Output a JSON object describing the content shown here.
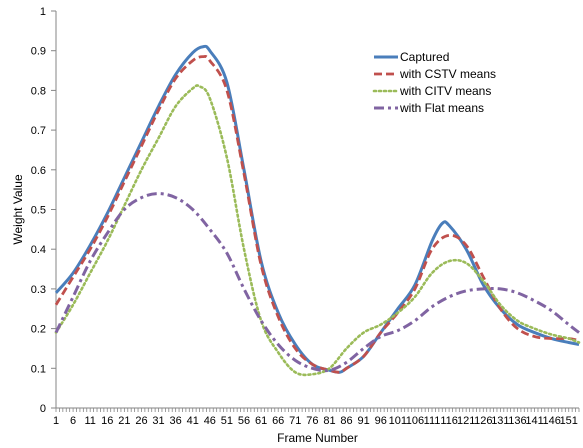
{
  "chart_data": {
    "type": "line",
    "title": "",
    "xlabel": "Frame Number",
    "ylabel": "Weight Value",
    "ylim": [
      0,
      1
    ],
    "xlim": [
      1,
      154
    ],
    "grid": false,
    "legend_position": "top-right",
    "y_ticks": [
      {
        "value": 0,
        "label": "0"
      },
      {
        "value": 0.1,
        "label": "0.1"
      },
      {
        "value": 0.2,
        "label": "0.2"
      },
      {
        "value": 0.3,
        "label": "0.3"
      },
      {
        "value": 0.4,
        "label": "0.4"
      },
      {
        "value": 0.5,
        "label": "0.5"
      },
      {
        "value": 0.6,
        "label": "0.6"
      },
      {
        "value": 0.7,
        "label": "0.7"
      },
      {
        "value": 0.8,
        "label": "0.8"
      },
      {
        "value": 0.9,
        "label": "0.9"
      },
      {
        "value": 1,
        "label": "1"
      }
    ],
    "x_ticks": [
      {
        "value": 1,
        "label": "1"
      },
      {
        "value": 6,
        "label": "6"
      },
      {
        "value": 11,
        "label": "11"
      },
      {
        "value": 16,
        "label": "16"
      },
      {
        "value": 21,
        "label": "21"
      },
      {
        "value": 26,
        "label": "26"
      },
      {
        "value": 31,
        "label": "31"
      },
      {
        "value": 36,
        "label": "36"
      },
      {
        "value": 41,
        "label": "41"
      },
      {
        "value": 46,
        "label": "46"
      },
      {
        "value": 51,
        "label": "51"
      },
      {
        "value": 56,
        "label": "56"
      },
      {
        "value": 61,
        "label": "61"
      },
      {
        "value": 66,
        "label": "66"
      },
      {
        "value": 71,
        "label": "71"
      },
      {
        "value": 76,
        "label": "76"
      },
      {
        "value": 81,
        "label": "81"
      },
      {
        "value": 86,
        "label": "86"
      },
      {
        "value": 91,
        "label": "91"
      },
      {
        "value": 96,
        "label": "96"
      },
      {
        "value": 101,
        "label": "101"
      },
      {
        "value": 106,
        "label": "106"
      },
      {
        "value": 111,
        "label": "111"
      },
      {
        "value": 116,
        "label": "116"
      },
      {
        "value": 121,
        "label": "121"
      },
      {
        "value": 126,
        "label": "126"
      },
      {
        "value": 131,
        "label": "131"
      },
      {
        "value": 136,
        "label": "136"
      },
      {
        "value": 141,
        "label": "141"
      },
      {
        "value": 146,
        "label": "146"
      },
      {
        "value": 151,
        "label": "151"
      }
    ],
    "series": [
      {
        "name": "Captured",
        "color": "#4a7ebb",
        "dash": "solid",
        "x": [
          1,
          6,
          11,
          16,
          21,
          26,
          31,
          36,
          41,
          44,
          46,
          51,
          56,
          61,
          66,
          71,
          76,
          81,
          84,
          86,
          91,
          96,
          101,
          106,
          111,
          114,
          116,
          121,
          126,
          131,
          136,
          141,
          146,
          151,
          154
        ],
        "y": [
          0.29,
          0.34,
          0.41,
          0.49,
          0.58,
          0.67,
          0.76,
          0.84,
          0.895,
          0.91,
          0.9,
          0.82,
          0.6,
          0.37,
          0.24,
          0.16,
          0.11,
          0.095,
          0.09,
          0.1,
          0.13,
          0.19,
          0.25,
          0.31,
          0.42,
          0.465,
          0.46,
          0.4,
          0.31,
          0.25,
          0.21,
          0.19,
          0.175,
          0.165,
          0.16
        ]
      },
      {
        "name": "with CSTV means",
        "color": "#c0504d",
        "dash": "dashed",
        "x": [
          1,
          6,
          11,
          16,
          21,
          26,
          31,
          36,
          41,
          44,
          46,
          51,
          56,
          61,
          66,
          71,
          76,
          81,
          84,
          86,
          91,
          96,
          101,
          106,
          111,
          116,
          121,
          126,
          131,
          136,
          141,
          146,
          151,
          154
        ],
        "y": [
          0.26,
          0.33,
          0.4,
          0.48,
          0.57,
          0.66,
          0.75,
          0.83,
          0.875,
          0.885,
          0.875,
          0.8,
          0.59,
          0.36,
          0.23,
          0.15,
          0.11,
          0.095,
          0.09,
          0.1,
          0.13,
          0.19,
          0.24,
          0.3,
          0.4,
          0.435,
          0.41,
          0.33,
          0.25,
          0.2,
          0.18,
          0.175,
          0.175,
          0.17
        ]
      },
      {
        "name": "with CITV means",
        "color": "#9bbb59",
        "dash": "dotted",
        "x": [
          1,
          6,
          11,
          16,
          21,
          26,
          31,
          36,
          41,
          43,
          46,
          51,
          56,
          61,
          66,
          71,
          76,
          81,
          86,
          91,
          96,
          101,
          106,
          111,
          116,
          121,
          126,
          131,
          136,
          141,
          146,
          151,
          154
        ],
        "y": [
          0.19,
          0.26,
          0.34,
          0.42,
          0.51,
          0.6,
          0.68,
          0.76,
          0.805,
          0.81,
          0.78,
          0.63,
          0.4,
          0.22,
          0.14,
          0.09,
          0.085,
          0.1,
          0.15,
          0.19,
          0.21,
          0.24,
          0.28,
          0.34,
          0.37,
          0.365,
          0.32,
          0.26,
          0.22,
          0.2,
          0.185,
          0.175,
          0.165
        ]
      },
      {
        "name": "with Flat means",
        "color": "#8064a2",
        "dash": "dashdot",
        "x": [
          1,
          6,
          11,
          16,
          21,
          26,
          31,
          36,
          41,
          46,
          51,
          56,
          61,
          66,
          71,
          76,
          81,
          86,
          91,
          96,
          101,
          106,
          111,
          116,
          121,
          126,
          131,
          136,
          141,
          146,
          151,
          154
        ],
        "y": [
          0.19,
          0.28,
          0.37,
          0.44,
          0.5,
          0.53,
          0.54,
          0.53,
          0.5,
          0.45,
          0.39,
          0.3,
          0.22,
          0.16,
          0.12,
          0.1,
          0.095,
          0.115,
          0.15,
          0.18,
          0.195,
          0.22,
          0.255,
          0.28,
          0.295,
          0.3,
          0.3,
          0.29,
          0.27,
          0.245,
          0.21,
          0.19
        ]
      }
    ]
  }
}
